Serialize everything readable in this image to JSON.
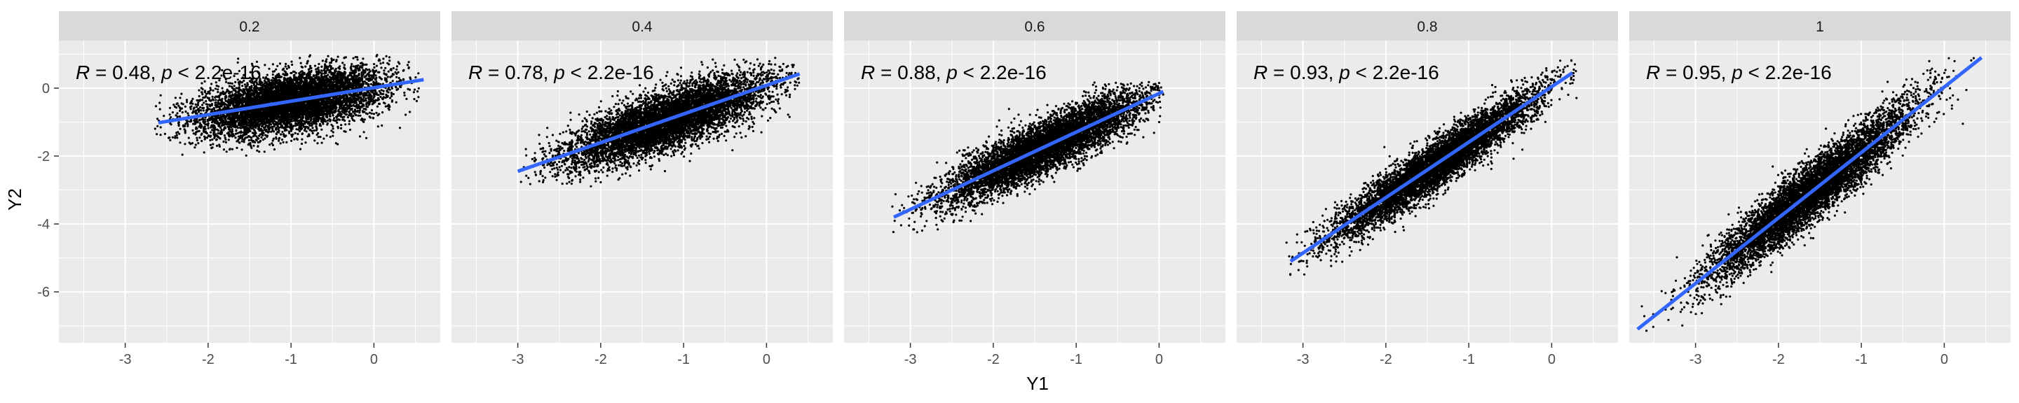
{
  "chart_data": {
    "type": "scatter",
    "layout": "facets-1x5",
    "xlabel": "Y1",
    "ylabel": "Y2",
    "xlim": [
      -3.8,
      0.8
    ],
    "ylim": [
      -7.5,
      1.4
    ],
    "x_ticks": [
      -3,
      -2,
      -1,
      0
    ],
    "y_ticks": [
      -6,
      -4,
      -2,
      0
    ],
    "grid": true,
    "point_color": "#000000",
    "line_color": "#3366FF",
    "panel_bg": "#EBEBEB",
    "strip_bg": "#D9D9D9",
    "panels": [
      {
        "label": "0.2",
        "annotation": {
          "r_label": "R",
          "r_value": " = 0.48, ",
          "p_label": "p",
          "p_value": " < 2.2e-16"
        },
        "fit_line": {
          "x": [
            -2.6,
            0.6
          ],
          "y": [
            -1.02,
            0.25
          ]
        },
        "cloud": {
          "cx": -1.0,
          "cy": -0.4,
          "sx": 0.55,
          "sy": 0.42,
          "slope": 0.4,
          "xmin": -2.65,
          "xmax": 0.55,
          "ymin": -2.0,
          "ymax": 1.0
        }
      },
      {
        "label": "0.4",
        "annotation": {
          "r_label": "R",
          "r_value": " = 0.78, ",
          "p_label": "p",
          "p_value": " < 2.2e-16"
        },
        "fit_line": {
          "x": [
            -3.0,
            0.4
          ],
          "y": [
            -2.45,
            0.42
          ]
        },
        "cloud": {
          "cx": -1.2,
          "cy": -0.95,
          "sx": 0.6,
          "sy": 0.42,
          "slope": 0.84,
          "xmin": -3.0,
          "xmax": 0.4,
          "ymin": -2.9,
          "ymax": 0.9
        }
      },
      {
        "label": "0.6",
        "annotation": {
          "r_label": "R",
          "r_value": " = 0.88, ",
          "p_label": "p",
          "p_value": " < 2.2e-16"
        },
        "fit_line": {
          "x": [
            -3.2,
            0.05
          ],
          "y": [
            -3.8,
            -0.1
          ]
        },
        "cloud": {
          "cx": -1.4,
          "cy": -1.75,
          "sx": 0.6,
          "sy": 0.38,
          "slope": 1.14,
          "xmin": -3.25,
          "xmax": 0.05,
          "ymin": -4.3,
          "ymax": 0.2
        }
      },
      {
        "label": "0.8",
        "annotation": {
          "r_label": "R",
          "r_value": " = 0.93, ",
          "p_label": "p",
          "p_value": " < 2.2e-16"
        },
        "fit_line": {
          "x": [
            -3.15,
            0.25
          ],
          "y": [
            -5.1,
            0.45
          ]
        },
        "cloud": {
          "cx": -1.4,
          "cy": -2.25,
          "sx": 0.6,
          "sy": 0.35,
          "slope": 1.63,
          "xmin": -3.2,
          "xmax": 0.3,
          "ymin": -5.5,
          "ymax": 0.9
        }
      },
      {
        "label": "1",
        "annotation": {
          "r_label": "R",
          "r_value": " = 0.95, ",
          "p_label": "p",
          "p_value": " < 2.2e-16"
        },
        "fit_line": {
          "x": [
            -3.7,
            0.45
          ],
          "y": [
            -7.1,
            0.9
          ]
        },
        "cloud": {
          "cx": -1.6,
          "cy": -3.05,
          "sx": 0.6,
          "sy": 0.42,
          "slope": 1.93,
          "xmin": -3.7,
          "xmax": 0.4,
          "ymin": -7.2,
          "ymax": 0.9
        }
      }
    ]
  }
}
